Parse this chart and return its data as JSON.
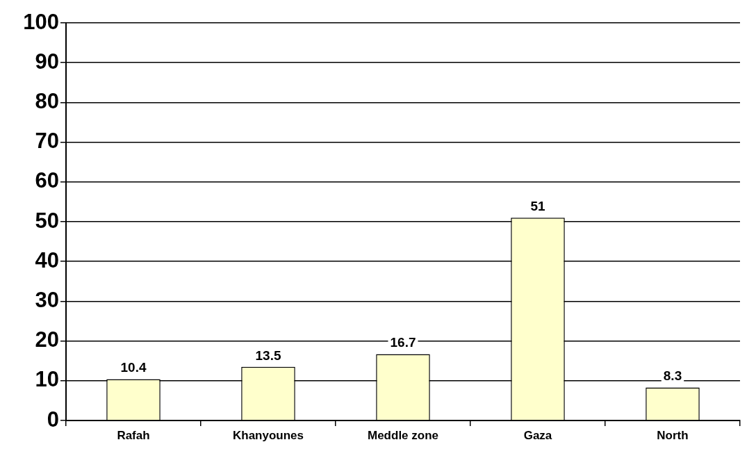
{
  "chart_data": {
    "type": "bar",
    "categories": [
      "Rafah",
      "Khanyounes",
      "Meddle zone",
      "Gaza",
      "North"
    ],
    "values": [
      10.4,
      13.5,
      16.7,
      51,
      8.3
    ],
    "color": "#ffffcc",
    "ylim": [
      0,
      100
    ],
    "yticks": [
      0,
      10,
      20,
      30,
      40,
      50,
      60,
      70,
      80,
      90,
      100
    ],
    "grid": "y",
    "data_labels": true
  }
}
